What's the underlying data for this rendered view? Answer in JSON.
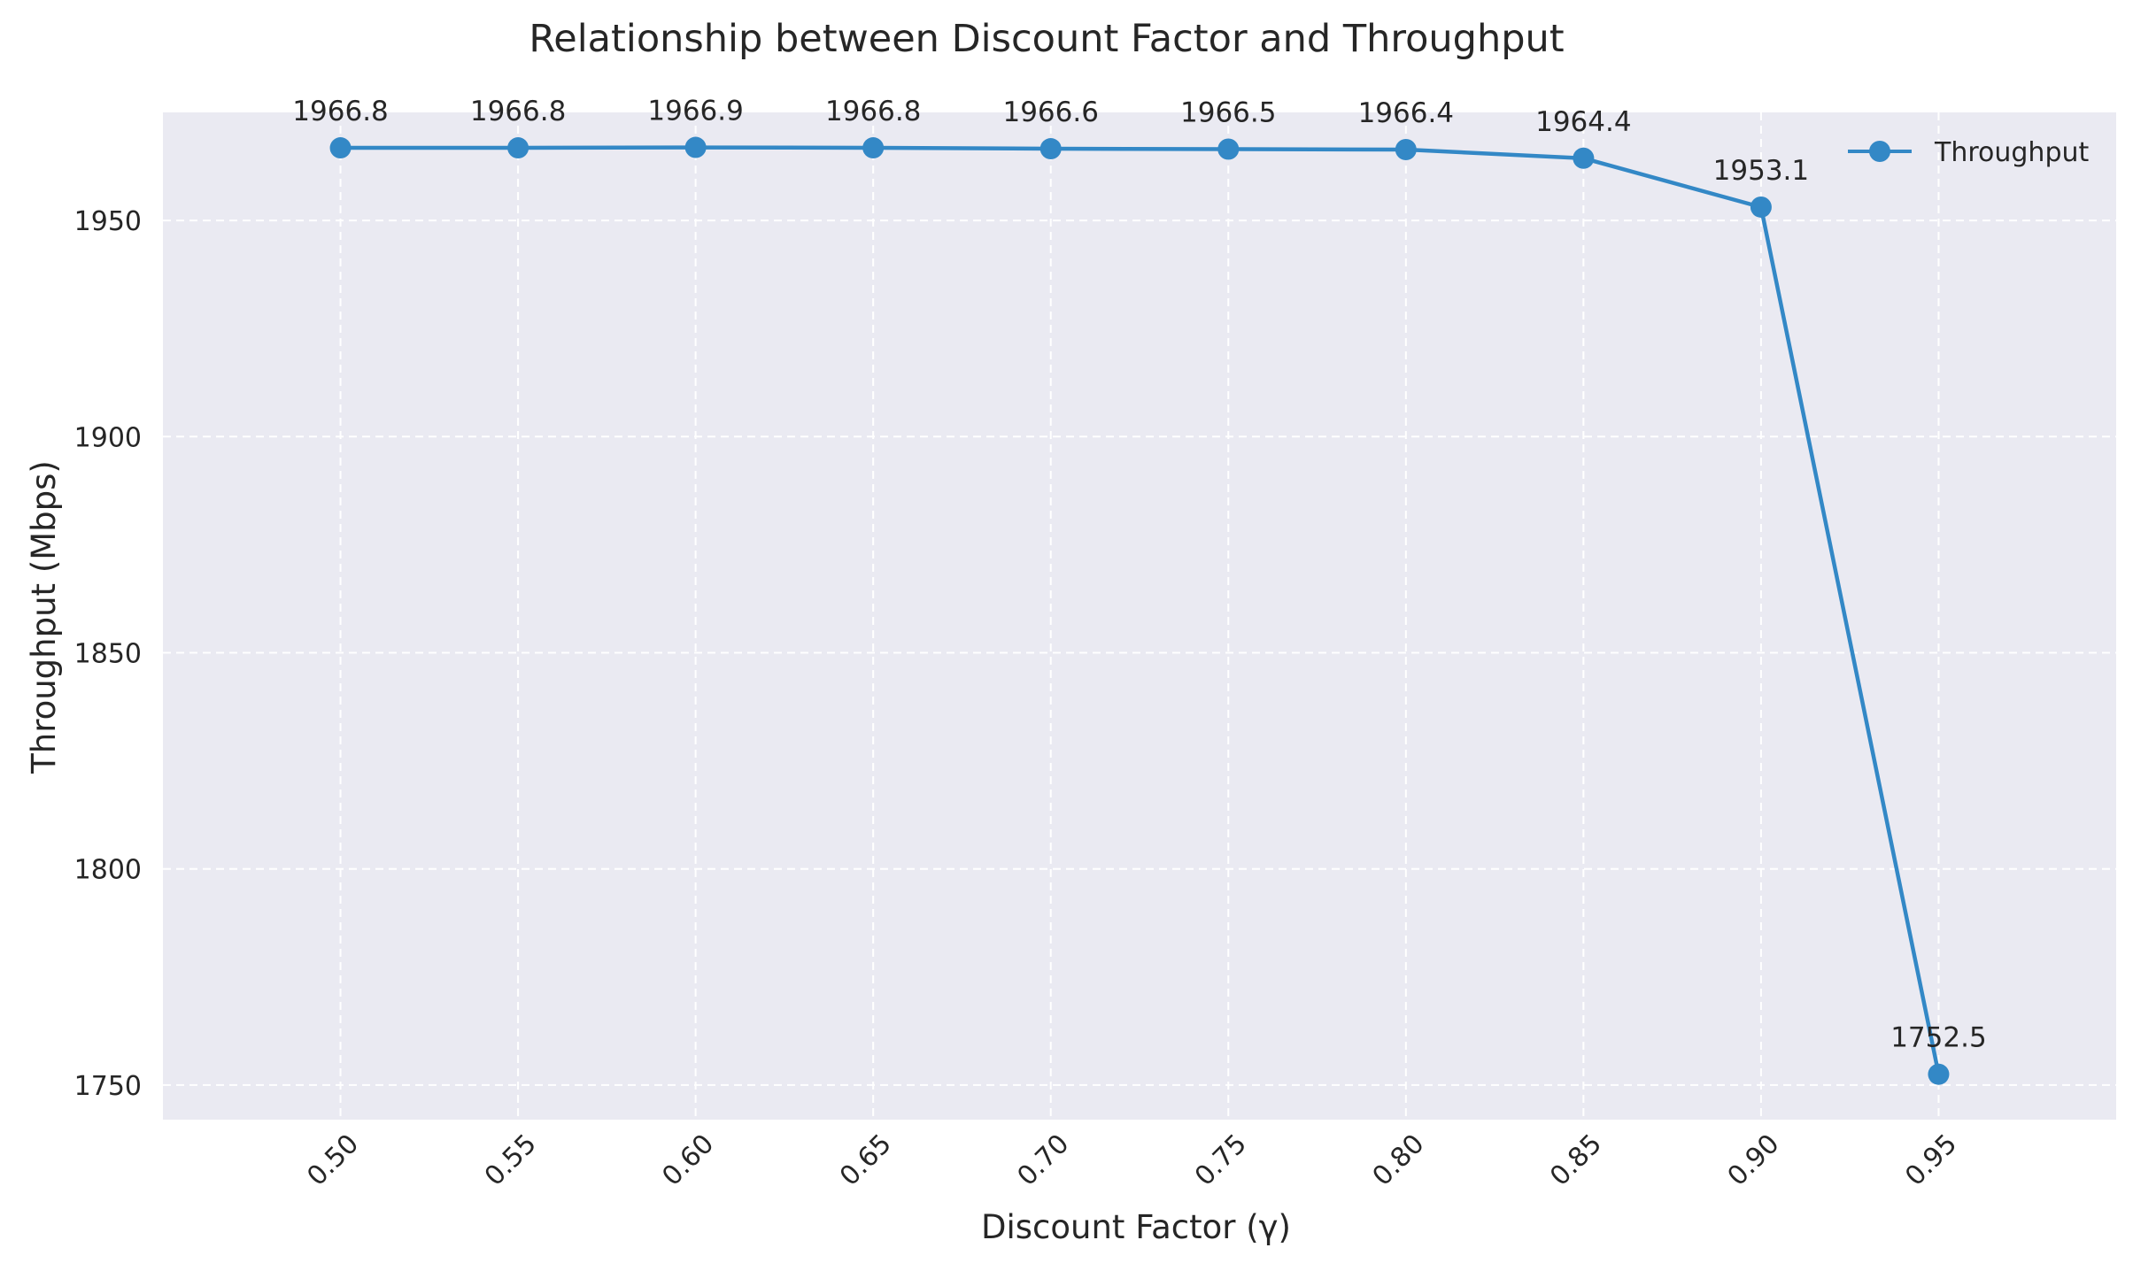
{
  "chart_data": {
    "type": "line",
    "title": "Relationship between Discount Factor and Throughput",
    "xlabel": "Discount Factor (γ)",
    "ylabel": "Throughput (Mbps)",
    "x": [
      0.5,
      0.55,
      0.6,
      0.65,
      0.7,
      0.75,
      0.8,
      0.85,
      0.9,
      0.95
    ],
    "x_tick_labels": [
      "0.50",
      "0.55",
      "0.60",
      "0.65",
      "0.70",
      "0.75",
      "0.80",
      "0.85",
      "0.90",
      "0.95"
    ],
    "series": [
      {
        "name": "Throughput",
        "values": [
          1966.8,
          1966.8,
          1966.9,
          1966.8,
          1966.6,
          1966.5,
          1966.4,
          1964.4,
          1953.1,
          1752.5
        ],
        "data_labels": [
          "1966.8",
          "1966.8",
          "1966.9",
          "1966.8",
          "1966.6",
          "1966.5",
          "1966.4",
          "1964.4",
          "1953.1",
          "1752.5"
        ],
        "color": "#3388c6"
      }
    ],
    "y_ticks": [
      1750,
      1800,
      1850,
      1900,
      1950
    ],
    "y_tick_labels": [
      "1750",
      "1800",
      "1850",
      "1900",
      "1950"
    ],
    "xlim": [
      0.45,
      1.0
    ],
    "ylim": [
      1742,
      1975
    ],
    "grid": true,
    "legend_position": "top-right",
    "colors": {
      "plot_background": "#eaeaf2",
      "grid": "#ffffff",
      "line": "#3388c6",
      "text": "#262626"
    }
  }
}
